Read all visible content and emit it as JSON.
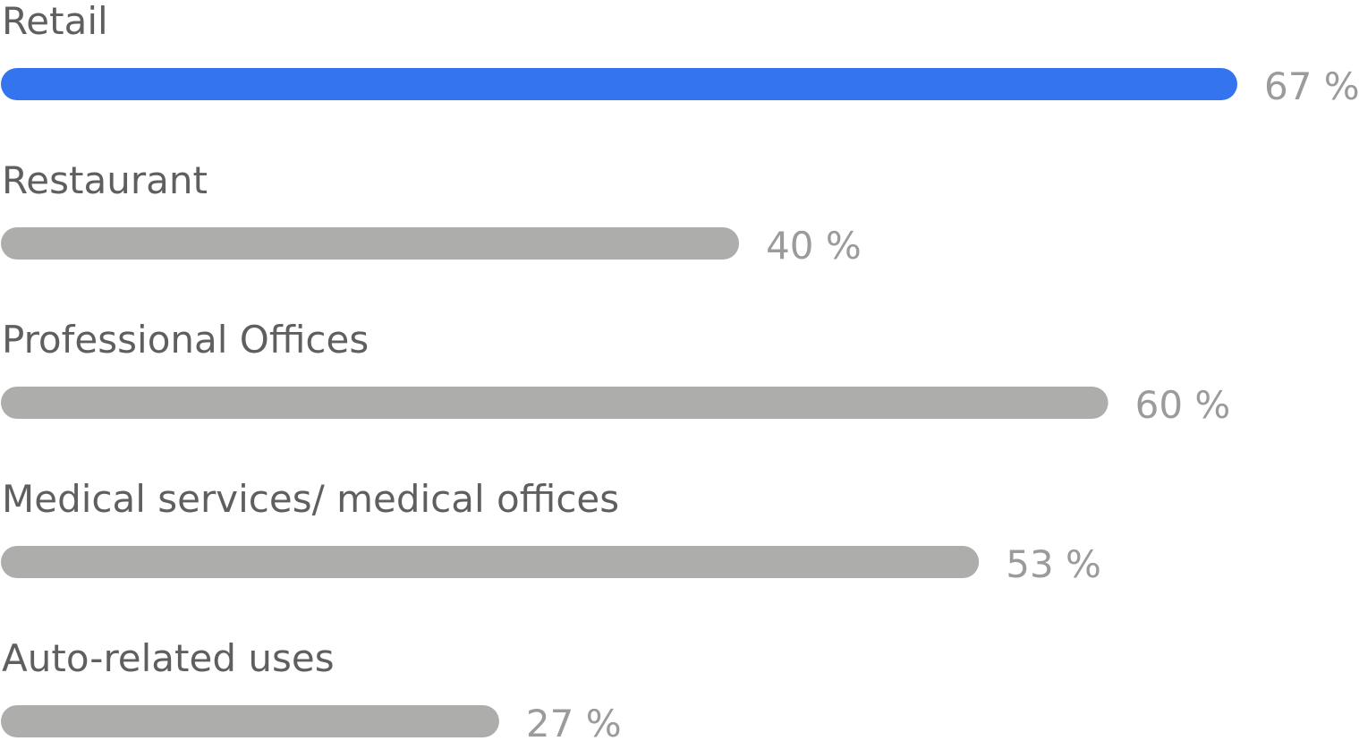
{
  "chart_data": {
    "type": "bar",
    "orientation": "horizontal",
    "categories": [
      "Retail",
      "Restaurant",
      "Professional Offices",
      "Medical services/ medical offices",
      "Auto-related uses"
    ],
    "values": [
      67,
      40,
      60,
      53,
      27
    ],
    "value_labels": [
      "67 %",
      "40 %",
      "60 %",
      "53 %",
      "27 %"
    ],
    "colors": [
      "#3574ef",
      "#adadac",
      "#adadac",
      "#adadac",
      "#adadac"
    ]
  }
}
